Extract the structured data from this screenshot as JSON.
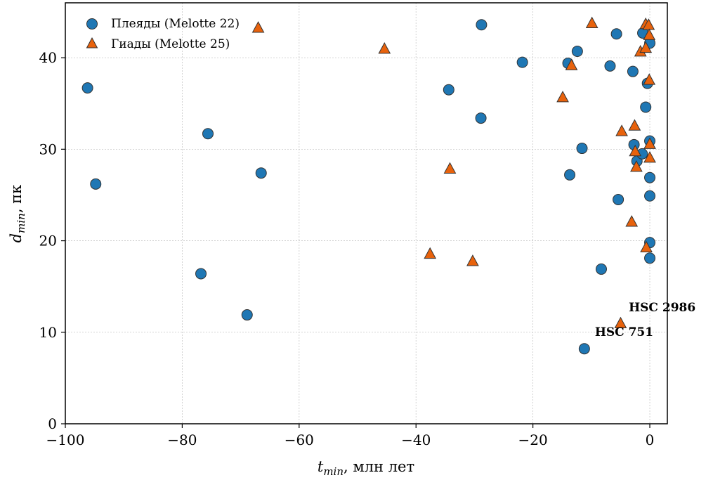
{
  "chart_data": {
    "type": "scatter",
    "xlabel_main": "t",
    "xlabel_sub": "min",
    "xlabel_rest": ", млн лет",
    "ylabel_main": "d",
    "ylabel_sub": "min",
    "ylabel_rest": ", пк",
    "xlim": [
      -100,
      3
    ],
    "ylim": [
      0,
      46
    ],
    "xticks": [
      -100,
      -80,
      -60,
      -40,
      -20,
      0
    ],
    "yticks": [
      0,
      10,
      20,
      30,
      40
    ],
    "grid": true,
    "legend_position": "top-left",
    "colors": {
      "pleiades": "#1f77b4",
      "hyades": "#e8620c",
      "marker_edge": "#333333"
    },
    "series": [
      {
        "name": "Плеяды (Melotte 22)",
        "marker": "circle",
        "points": [
          [
            -96.2,
            36.7
          ],
          [
            -94.8,
            26.2
          ],
          [
            -76.8,
            16.4
          ],
          [
            -75.6,
            31.7
          ],
          [
            -68.9,
            11.9
          ],
          [
            -66.5,
            27.4
          ],
          [
            -34.4,
            36.5
          ],
          [
            -28.8,
            43.6
          ],
          [
            -28.9,
            33.4
          ],
          [
            -21.8,
            39.5
          ],
          [
            -14.0,
            39.4
          ],
          [
            -13.7,
            27.2
          ],
          [
            -12.4,
            40.7
          ],
          [
            -11.6,
            30.1
          ],
          [
            -11.2,
            8.2
          ],
          [
            -8.3,
            16.9
          ],
          [
            -6.8,
            39.1
          ],
          [
            -5.7,
            42.6
          ],
          [
            -5.4,
            24.5
          ],
          [
            -2.9,
            38.5
          ],
          [
            -2.7,
            30.5
          ],
          [
            -2.2,
            28.7
          ],
          [
            -1.3,
            29.5
          ],
          [
            -1.2,
            42.7
          ],
          [
            -0.7,
            34.6
          ],
          [
            -0.4,
            37.2
          ],
          [
            0.0,
            41.6
          ],
          [
            0.0,
            30.9
          ],
          [
            0.0,
            26.9
          ],
          [
            0.0,
            24.9
          ],
          [
            0.0,
            19.8
          ],
          [
            0.0,
            18.1
          ]
        ]
      },
      {
        "name": "Гиады (Melotte 25)",
        "marker": "triangle",
        "points": [
          [
            -67.0,
            43.3
          ],
          [
            -45.4,
            41.0
          ],
          [
            -37.6,
            18.6
          ],
          [
            -34.2,
            27.9
          ],
          [
            -30.3,
            17.8
          ],
          [
            -14.9,
            35.7
          ],
          [
            -13.4,
            39.2
          ],
          [
            -9.9,
            43.8
          ],
          [
            -5.0,
            11.0
          ],
          [
            -4.8,
            32.0
          ],
          [
            -3.1,
            22.1
          ],
          [
            -2.6,
            32.6
          ],
          [
            -2.5,
            29.8
          ],
          [
            -2.3,
            28.1
          ],
          [
            -1.6,
            40.7
          ],
          [
            -0.7,
            43.7
          ],
          [
            -0.7,
            41.1
          ],
          [
            -0.6,
            19.3
          ],
          [
            -0.2,
            43.6
          ],
          [
            -0.1,
            42.5
          ],
          [
            -0.1,
            37.6
          ],
          [
            0.0,
            30.6
          ],
          [
            0.0,
            29.1
          ]
        ]
      }
    ],
    "annotations": [
      {
        "text": "HSC 2986",
        "x": -3.6,
        "y": 12.3
      },
      {
        "text": "HSC 751",
        "x": -9.4,
        "y": 9.6
      }
    ]
  }
}
